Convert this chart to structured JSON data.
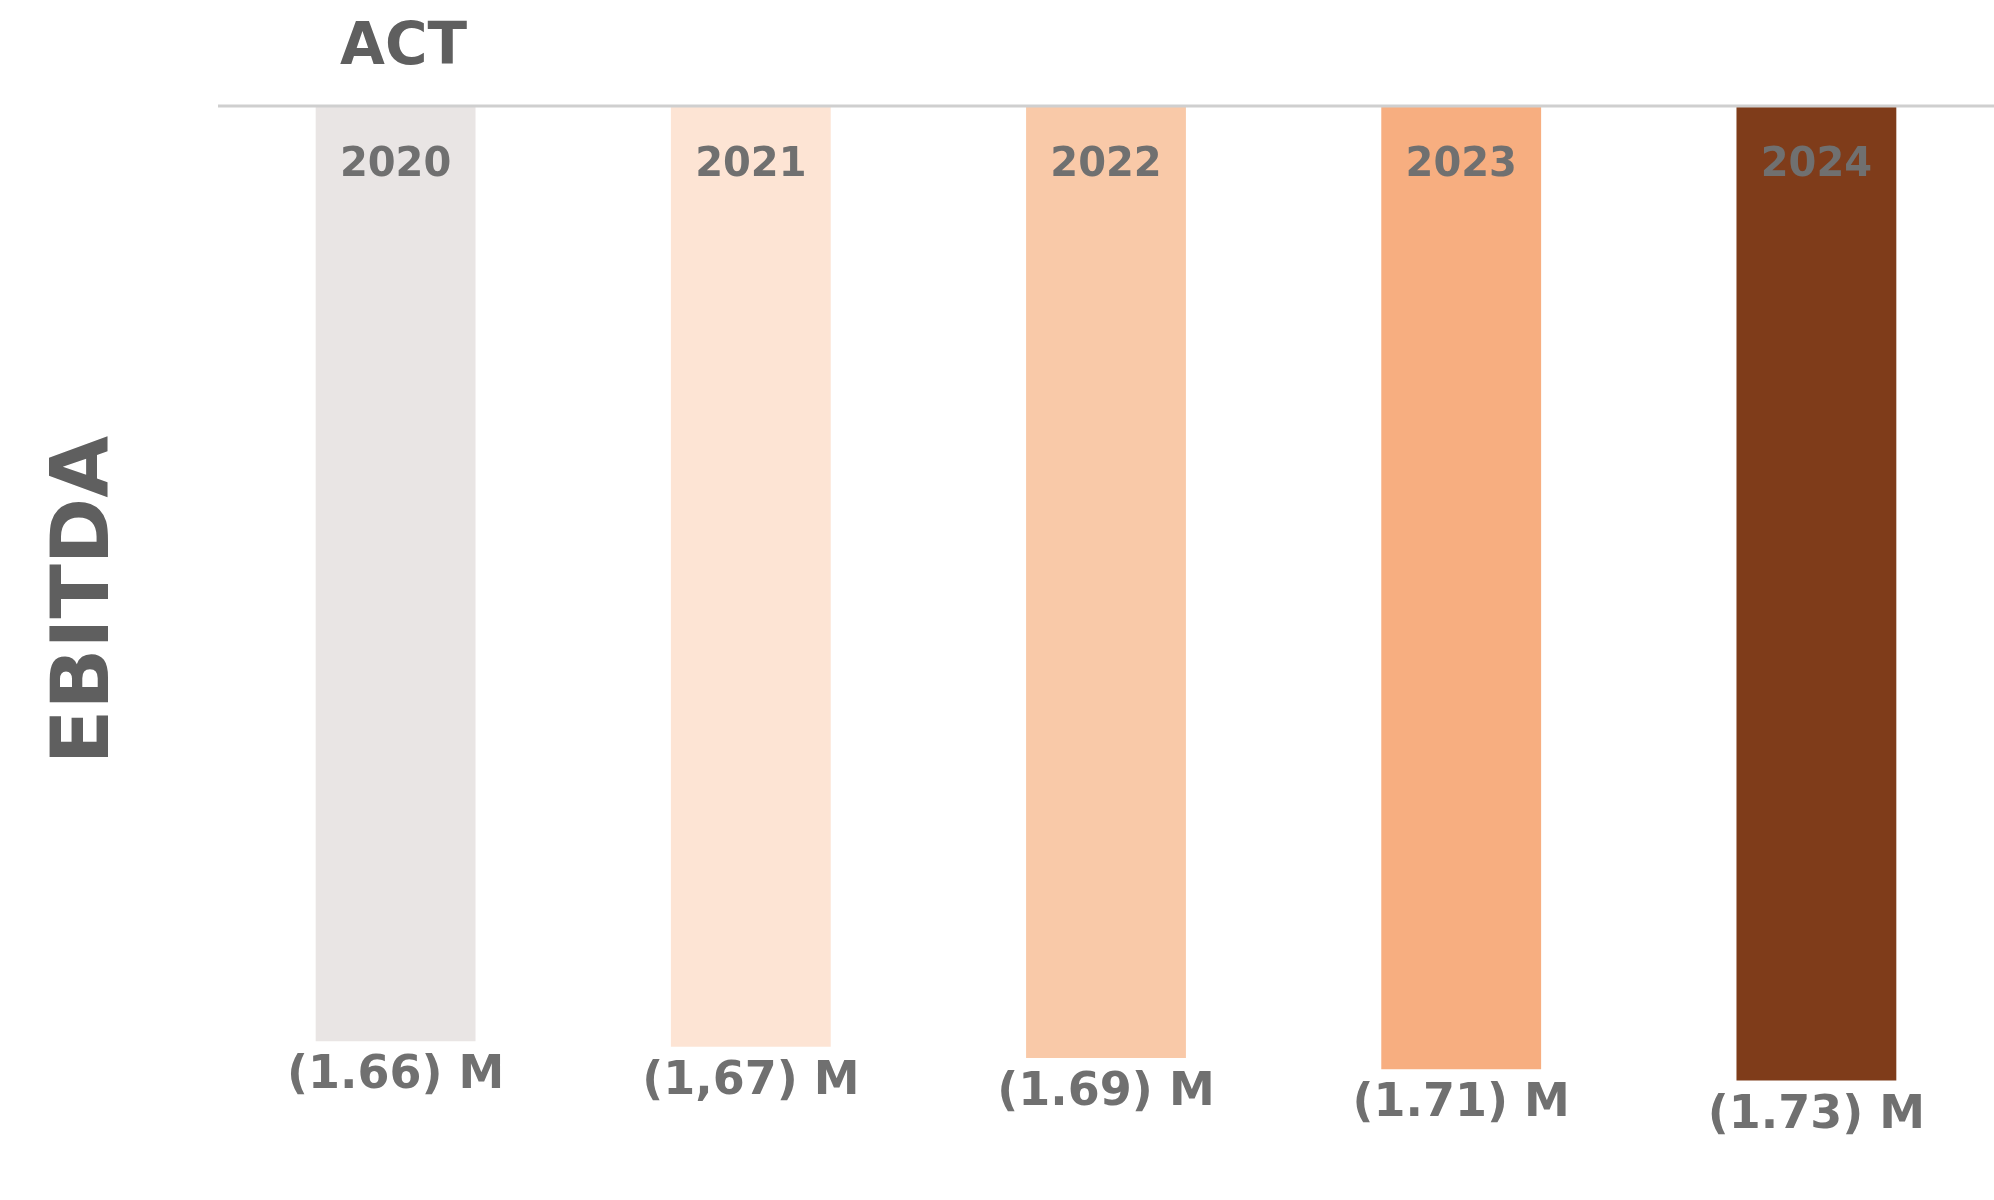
{
  "chart_data": {
    "type": "bar",
    "title": "ACT",
    "ylabel": "EBITDA",
    "categories": [
      "2020",
      "2021",
      "2022",
      "2023",
      "2024"
    ],
    "values": [
      -1.66,
      -1.67,
      -1.69,
      -1.71,
      -1.73
    ],
    "colors": [
      "#e9e5e4",
      "#fde4d4",
      "#f9c9a8",
      "#f7ae80",
      "#7f3c1a"
    ],
    "value_labels": [
      "(1.66) M",
      "(1,67) M",
      "(1.69) M",
      "(1.71) M",
      "(1.73) M"
    ],
    "legend": false
  }
}
